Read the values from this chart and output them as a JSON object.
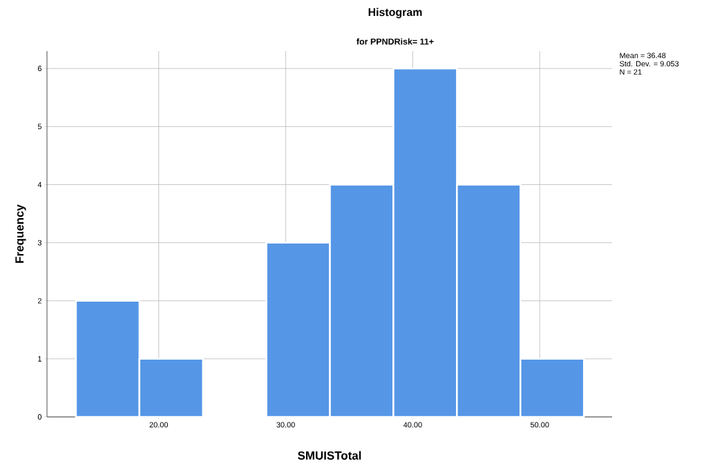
{
  "chart_data": {
    "type": "histogram",
    "title": "Histogram",
    "subtitle": "for PPNDRisk= 11+",
    "xlabel": "SMUISTotal",
    "ylabel": "Frequency",
    "bins": [
      13.48,
      18.48,
      23.48,
      28.48,
      33.48,
      38.48,
      43.48,
      48.48,
      53.48
    ],
    "values": [
      2,
      1,
      0,
      3,
      4,
      6,
      4,
      1
    ],
    "color": "#5596e6",
    "xlim": [
      11.2,
      55.7
    ],
    "ylim": [
      0,
      6.3
    ],
    "xticks": [
      {
        "value": 20,
        "label": "20.00"
      },
      {
        "value": 30,
        "label": "30.00"
      },
      {
        "value": 40,
        "label": "40.00"
      },
      {
        "value": 50,
        "label": "50.00"
      }
    ],
    "yticks": [
      0,
      1,
      2,
      3,
      4,
      5,
      6
    ],
    "grid": true,
    "annotations": [
      "Mean = 36.48",
      "Std. Dev. = 9.053",
      "N = 21"
    ]
  }
}
